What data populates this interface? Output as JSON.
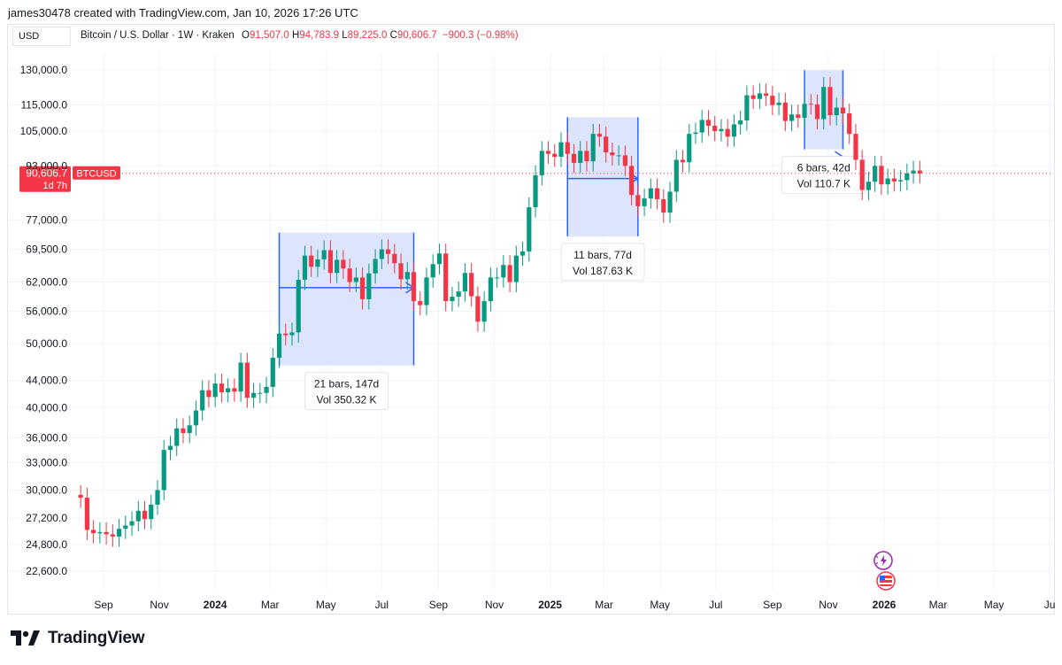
{
  "header": {
    "attribution": "james30478 created with TradingView.com, Jan 10, 2026 17:26 UTC"
  },
  "toolbar": {
    "currency": "USD",
    "symbol": "Bitcoin / U.S. Dollar · 1W · Kraken",
    "ohlc": [
      {
        "label": "O",
        "value": "91,507.0"
      },
      {
        "label": "H",
        "value": "94,783.9"
      },
      {
        "label": "L",
        "value": "89,225.0"
      },
      {
        "label": "C",
        "value": "90,606.7"
      }
    ],
    "change": "−900.3 (−0.98%)"
  },
  "price_marker": {
    "price": "90,606.7",
    "countdown": "1d 7h",
    "ticker": "BTCUSD",
    "color": "#f23645"
  },
  "brand": {
    "name": "TradingView"
  },
  "colors": {
    "up": "#089981",
    "down": "#f23645",
    "measure_fill": "#d7e1fb",
    "measure_line": "#2962ff"
  },
  "chart_data": {
    "type": "candlestick",
    "title": "Bitcoin / U.S. Dollar · 1W · Kraken",
    "scale": "log",
    "ylim": [
      21000,
      142000
    ],
    "x_tick_labels": [
      "Sep",
      "Nov",
      "2024",
      "Mar",
      "May",
      "Jul",
      "Sep",
      "Nov",
      "2025",
      "Mar",
      "May",
      "Jul",
      "Sep",
      "Nov",
      "2026",
      "Mar",
      "May",
      "Ju"
    ],
    "y_tick_labels": [
      "130,000.0",
      "115,000.0",
      "105,000.0",
      "93,000.0",
      "77,000.0",
      "69,500.0",
      "62,000.0",
      "56,000.0",
      "50,000.0",
      "44,000.0",
      "40,000.0",
      "36,000.0",
      "33,000.0",
      "30,000.0",
      "27,200.0",
      "24,800.0",
      "22,600.0"
    ],
    "x_tick_dates": [
      "2023-09-01",
      "2023-11-01",
      "2024-01-01",
      "2024-03-01",
      "2024-05-01",
      "2024-07-01",
      "2024-09-01",
      "2024-11-01",
      "2025-01-01",
      "2025-03-01",
      "2025-05-01",
      "2025-07-01",
      "2025-09-01",
      "2025-11-01",
      "2026-01-01",
      "2026-03-01",
      "2026-05-01",
      "2026-07-01"
    ],
    "y_ticks": [
      130000,
      115000,
      105000,
      93000,
      77000,
      69500,
      62000,
      56000,
      50000,
      44000,
      40000,
      36000,
      33000,
      30000,
      27200,
      24800,
      22600
    ],
    "first_week": "2023-08-07",
    "close_series": [
      29200,
      26100,
      25800,
      25900,
      25700,
      25500,
      26200,
      26500,
      26900,
      27900,
      27100,
      28500,
      30000,
      34500,
      35000,
      37200,
      36600,
      37600,
      39600,
      42500,
      41500,
      43500,
      42200,
      42800,
      42300,
      46800,
      41400,
      42100,
      42100,
      43000,
      47600,
      51800,
      51500,
      52000,
      62500,
      68000,
      65400,
      67100,
      69300,
      64000,
      67000,
      65000,
      62000,
      63000,
      58400,
      63900,
      67200,
      69500,
      68400,
      66200,
      62600,
      64200,
      58000,
      57200,
      63000,
      66000,
      68500,
      58000,
      58900,
      60000,
      64000,
      59000,
      54000,
      58000,
      63000,
      63000,
      65800,
      62000,
      68000,
      69000,
      80500,
      90000,
      98000,
      97000,
      96000,
      101000,
      97000,
      94000,
      98000,
      94500,
      104000,
      103000,
      97500,
      96500,
      96500,
      93000,
      84000,
      80800,
      83000,
      86000,
      82800,
      79000,
      85000,
      95000,
      94200,
      104000,
      104500,
      109200,
      107000,
      105000,
      105800,
      103000,
      107500,
      109000,
      119000,
      117500,
      119800,
      118800,
      115000,
      116000,
      108800,
      111300,
      110000,
      115500,
      115300,
      109500,
      122500,
      111000,
      114000,
      111700,
      104000,
      95000,
      85500,
      88000,
      93000,
      87200,
      89000,
      88100,
      88500,
      90600,
      91500,
      90600
    ],
    "annotations": [
      {
        "type": "date_price_range",
        "label": "21 bars, 147d",
        "volume": "Vol 350.32 K",
        "from": "2024-03-11",
        "to": "2024-08-05",
        "price_from": 60800,
        "price_to": 60000
      },
      {
        "type": "date_price_range",
        "label": "11 bars, 77d",
        "volume": "Vol 187.63 K",
        "from": "2025-01-20",
        "to": "2025-04-07",
        "price_from": 89000,
        "price_to": 89000
      },
      {
        "type": "date_price_range",
        "label": "6 bars, 42d",
        "volume": "Vol 110.7 K",
        "from": "2025-10-06",
        "to": "2025-11-17",
        "price_from": 96000,
        "price_to": 96000
      }
    ]
  }
}
